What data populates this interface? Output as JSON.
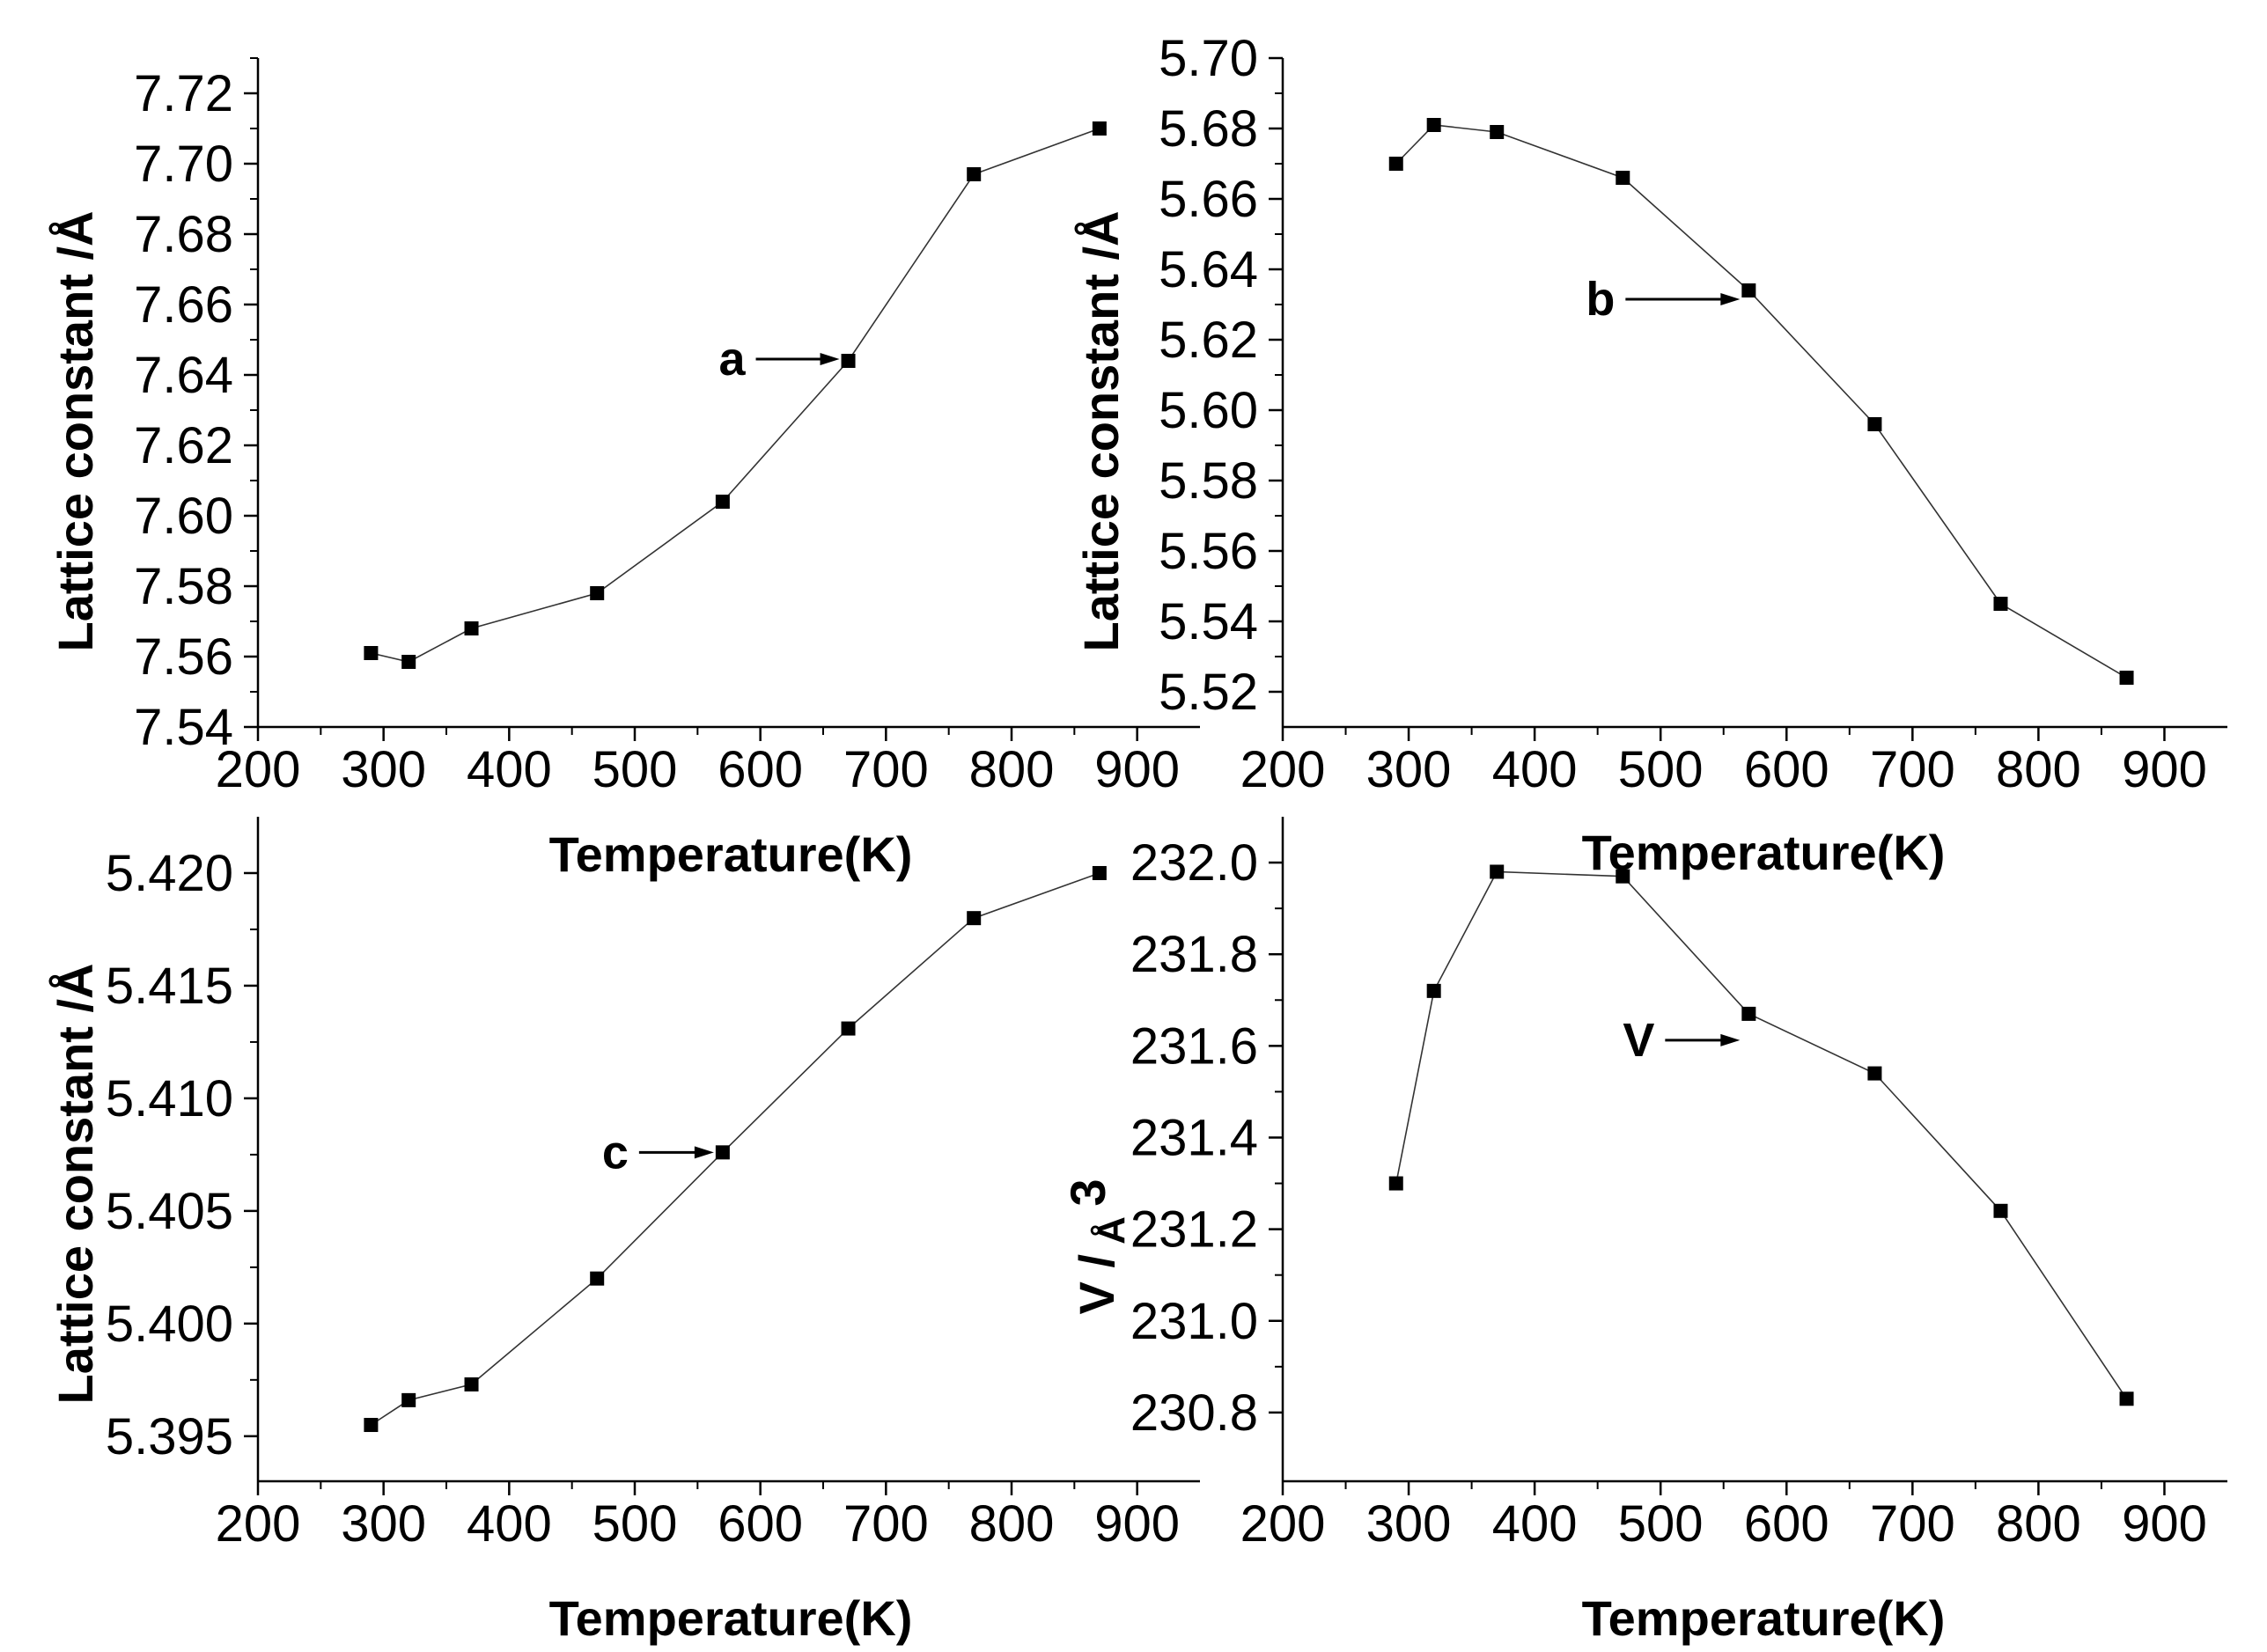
{
  "chart_data": [
    {
      "type": "line",
      "panel": "top-left",
      "xlabel": "Temperature(K)",
      "ylabel": "Lattice constant /Å",
      "xlim": [
        200,
        950
      ],
      "ylim": [
        7.54,
        7.73
      ],
      "xticks": [
        200,
        300,
        400,
        500,
        600,
        700,
        800,
        900
      ],
      "xtick_labels": [
        "200",
        "300",
        "400",
        "500",
        "600",
        "700",
        "800",
        "900"
      ],
      "yticks": [
        7.54,
        7.56,
        7.58,
        7.6,
        7.62,
        7.64,
        7.66,
        7.68,
        7.7,
        7.72
      ],
      "ytick_labels": [
        "7.54",
        "7.56",
        "7.58",
        "7.60",
        "7.62",
        "7.64",
        "7.66",
        "7.68",
        "7.70",
        "7.72"
      ],
      "series": [
        {
          "x": [
            290,
            320,
            370,
            470,
            570,
            670,
            770,
            870
          ],
          "values": [
            7.561,
            7.5585,
            7.568,
            7.578,
            7.604,
            7.644,
            7.697,
            7.71
          ]
        }
      ],
      "annotation": {
        "text": "a",
        "x": 670,
        "y": 7.644
      }
    },
    {
      "type": "line",
      "panel": "top-right",
      "xlabel": "Temperature(K)",
      "ylabel": "Lattice constant /Å",
      "xlim": [
        200,
        950
      ],
      "ylim": [
        5.51,
        5.7
      ],
      "xticks": [
        200,
        300,
        400,
        500,
        600,
        700,
        800,
        900
      ],
      "xtick_labels": [
        "200",
        "300",
        "400",
        "500",
        "600",
        "700",
        "800",
        "900"
      ],
      "yticks": [
        5.52,
        5.54,
        5.56,
        5.58,
        5.6,
        5.62,
        5.64,
        5.66,
        5.68,
        5.7
      ],
      "ytick_labels": [
        "5.52",
        "5.54",
        "5.56",
        "5.58",
        "5.60",
        "5.62",
        "5.64",
        "5.66",
        "5.68",
        "5.70"
      ],
      "series": [
        {
          "x": [
            290,
            320,
            370,
            470,
            570,
            670,
            770,
            870
          ],
          "values": [
            5.67,
            5.681,
            5.679,
            5.666,
            5.634,
            5.596,
            5.545,
            5.524
          ]
        }
      ],
      "annotation": {
        "text": "b",
        "x": 570,
        "y": 5.634
      }
    },
    {
      "type": "line",
      "panel": "bottom-left",
      "xlabel": "Temperature(K)",
      "ylabel": "Lattice constant /Å",
      "xlim": [
        200,
        950
      ],
      "ylim": [
        5.393,
        5.4225
      ],
      "xticks": [
        200,
        300,
        400,
        500,
        600,
        700,
        800,
        900
      ],
      "xtick_labels": [
        "200",
        "300",
        "400",
        "500",
        "600",
        "700",
        "800",
        "900"
      ],
      "yticks": [
        5.395,
        5.4,
        5.405,
        5.41,
        5.415,
        5.42
      ],
      "ytick_labels": [
        "5.395",
        "5.400",
        "5.405",
        "5.410",
        "5.415",
        "5.420"
      ],
      "series": [
        {
          "x": [
            290,
            320,
            370,
            470,
            570,
            670,
            770,
            870
          ],
          "values": [
            5.3955,
            5.3966,
            5.3973,
            5.402,
            5.4076,
            5.4131,
            5.418,
            5.42
          ]
        }
      ],
      "annotation": {
        "text": "c",
        "x": 570,
        "y": 5.4076
      }
    },
    {
      "type": "line",
      "panel": "bottom-right",
      "xlabel": "Temperature(K)",
      "ylabel_main": "V /",
      "ylabel_unit": "Å",
      "ylabel_sup": "3",
      "xlim": [
        200,
        950
      ],
      "ylim": [
        230.65,
        232.1
      ],
      "xticks": [
        200,
        300,
        400,
        500,
        600,
        700,
        800,
        900
      ],
      "xtick_labels": [
        "200",
        "300",
        "400",
        "500",
        "600",
        "700",
        "800",
        "900"
      ],
      "yticks": [
        230.8,
        231.0,
        231.2,
        231.4,
        231.6,
        231.8,
        232.0
      ],
      "ytick_labels": [
        "230.8",
        "231.0",
        "231.2",
        "231.4",
        "231.6",
        "231.8",
        "232.0"
      ],
      "series": [
        {
          "x": [
            290,
            320,
            370,
            470,
            570,
            670,
            770,
            870
          ],
          "values": [
            231.3,
            231.72,
            231.98,
            231.97,
            231.67,
            231.54,
            231.24,
            230.83
          ]
        }
      ],
      "annotation": {
        "text": "V",
        "x": 570,
        "y": 231.67
      }
    }
  ]
}
